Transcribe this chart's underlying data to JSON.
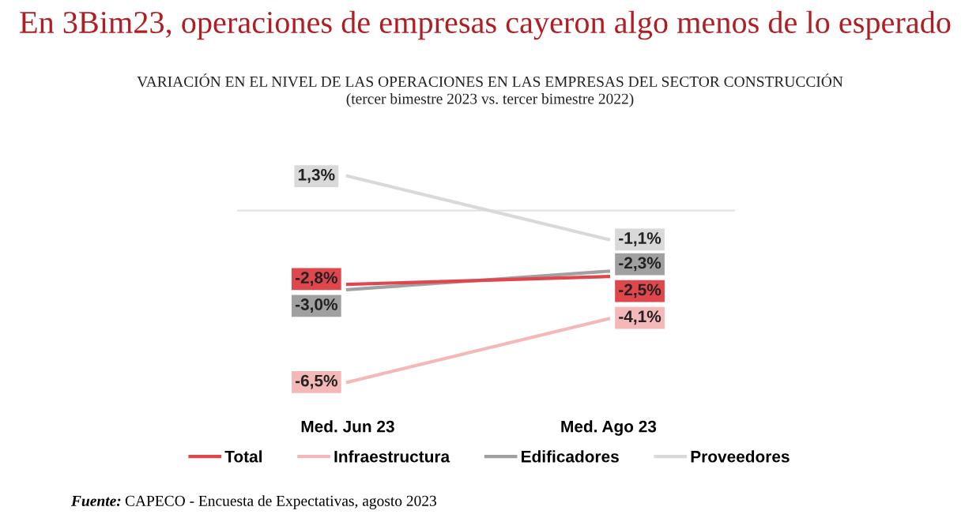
{
  "chart_data": {
    "type": "line",
    "title": "En 3Bim23, operaciones de empresas cayeron algo menos de lo esperado",
    "subtitle": "VARIACIÓN EN EL NIVEL DE LAS OPERACIONES EN LAS EMPRESAS DEL SECTOR CONSTRUCCIÓN\n(tercer bimestre 2023 vs. tercer bimestre 2022)",
    "categories": [
      "Med. Jun 23",
      "Med. Ago 23"
    ],
    "series": [
      {
        "name": "Total",
        "color": "#e0474c",
        "values": [
          -2.8,
          -2.5
        ],
        "value_labels": [
          "-2,8%",
          "-2,5%"
        ]
      },
      {
        "name": "Infraestructura",
        "color": "#f4b8b8",
        "values": [
          -6.5,
          -4.1
        ],
        "value_labels": [
          "-6,5%",
          "-4,1%"
        ]
      },
      {
        "name": "Edificadores",
        "color": "#a0a0a0",
        "values": [
          -3.0,
          -2.3
        ],
        "value_labels": [
          "-3,0%",
          "-2,3%"
        ]
      },
      {
        "name": "Proveedores",
        "color": "#d9d9d9",
        "values": [
          1.3,
          -1.1
        ],
        "value_labels": [
          "1,3%",
          "-1,1%"
        ]
      }
    ],
    "legend": "bottom",
    "grid": false,
    "marker": "none",
    "line_style": "solid",
    "annotations": [
      "Fuente: CAPECO - Encuesta de Expectativas, agosto 2023"
    ]
  }
}
